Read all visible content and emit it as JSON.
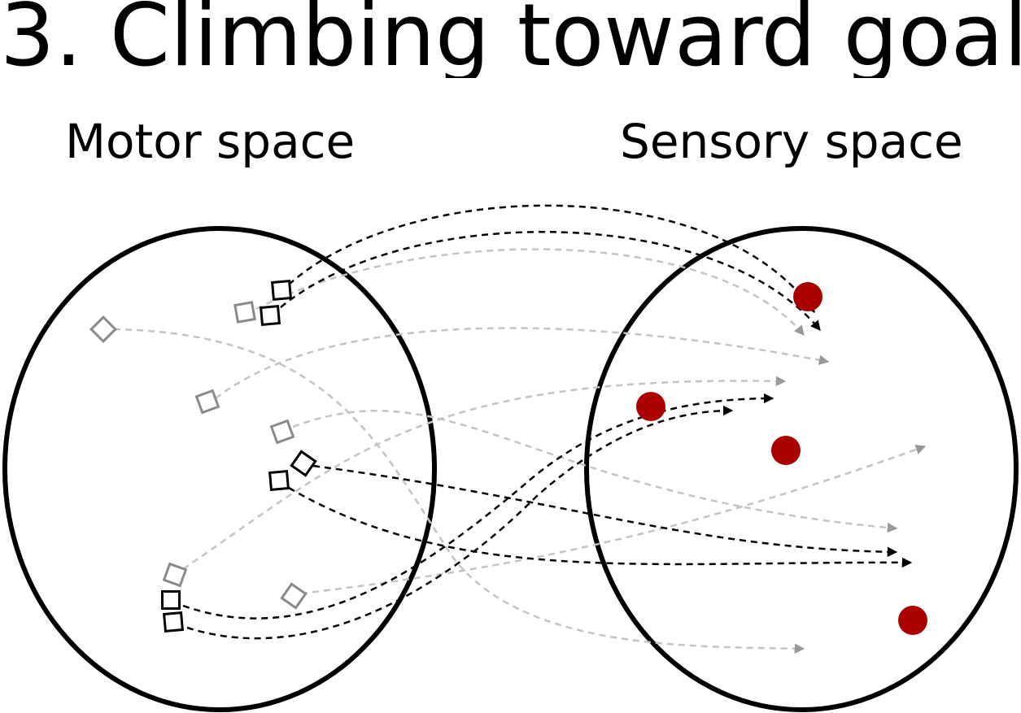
{
  "title": "3. Climbing toward goal",
  "panels": {
    "motor": {
      "label": "Motor space"
    },
    "sensory": {
      "label": "Sensory space"
    }
  },
  "colors": {
    "outline": "#000000",
    "gray_trajectory": "#c4c4c4",
    "gray_marker": "#8a8a8a",
    "black_trajectory": "#000000",
    "goal": "#aa0000"
  }
}
